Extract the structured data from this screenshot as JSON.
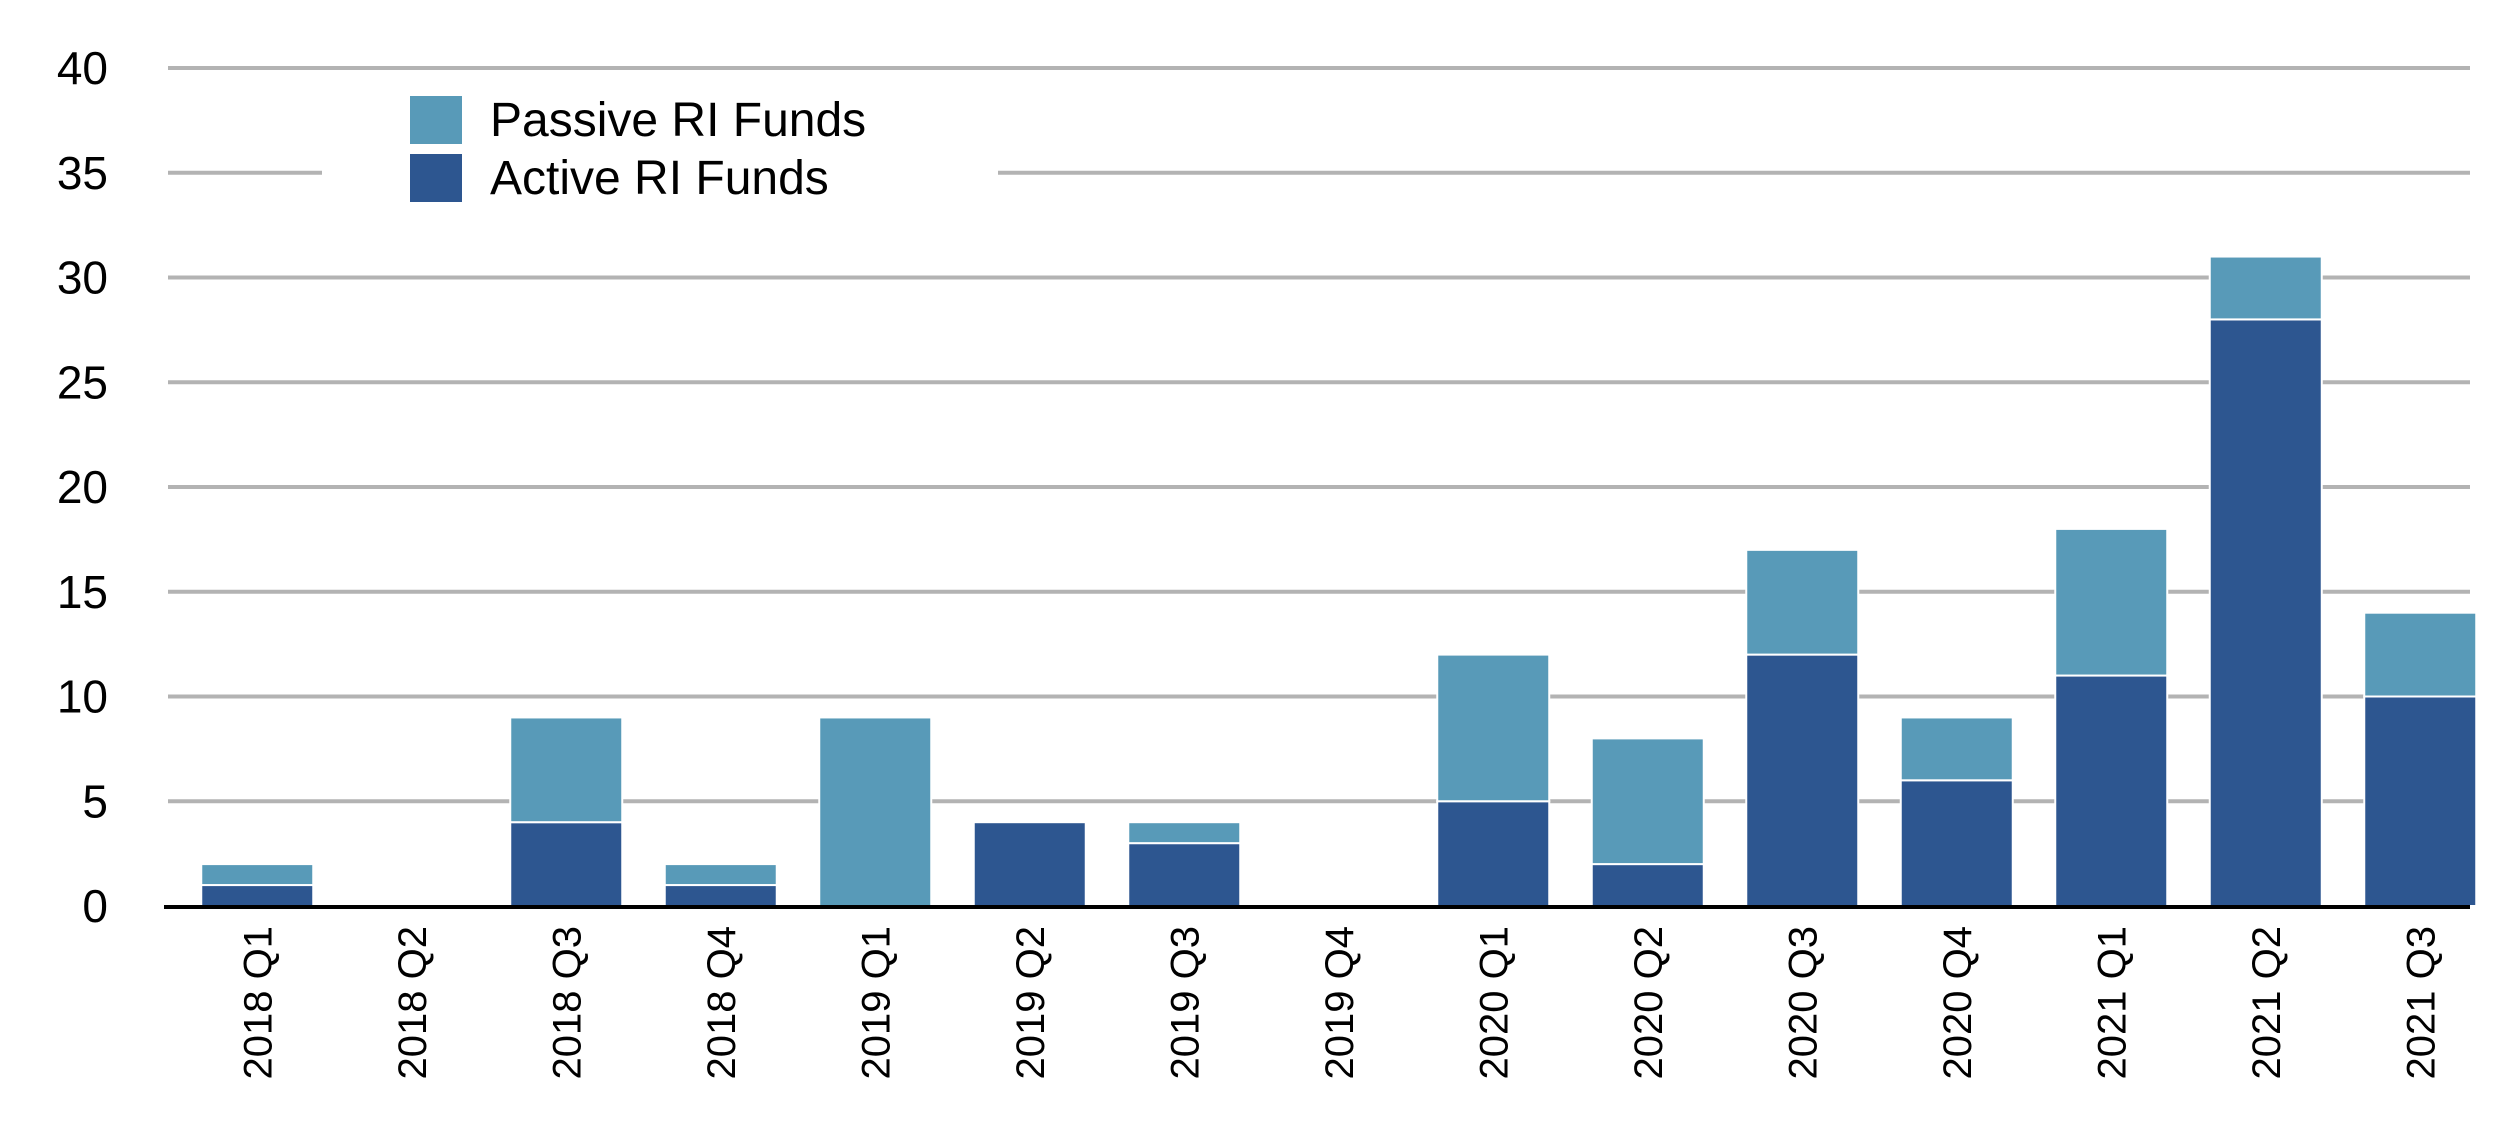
{
  "chart_data": {
    "type": "bar",
    "stacked": true,
    "categories": [
      "2018 Q1",
      "2018 Q2",
      "2018 Q3",
      "2018 Q4",
      "2019 Q1",
      "2019 Q2",
      "2019 Q3",
      "2019 Q4",
      "2020 Q1",
      "2020 Q2",
      "2020 Q3",
      "2020 Q4",
      "2021 Q1",
      "2021 Q2",
      "2021 Q3"
    ],
    "series": [
      {
        "name": "Active RI Funds",
        "color": "#2d5690",
        "values": [
          1,
          0,
          4,
          1,
          0,
          4,
          3,
          0,
          5,
          2,
          12,
          6,
          11,
          28,
          10
        ]
      },
      {
        "name": "Passive RI Funds",
        "color": "#589ab8",
        "values": [
          1,
          0,
          5,
          1,
          9,
          0,
          1,
          0,
          7,
          6,
          5,
          3,
          7,
          3,
          4
        ]
      }
    ],
    "legend": {
      "position": "top-left",
      "items": [
        "Passive RI Funds",
        "Active RI Funds"
      ]
    },
    "ylim": [
      0,
      40
    ],
    "yticks": [
      "0",
      "5",
      "10",
      "15",
      "20",
      "25",
      "30",
      "35",
      "40"
    ],
    "grid": true,
    "title": "",
    "xlabel": "",
    "ylabel": ""
  }
}
